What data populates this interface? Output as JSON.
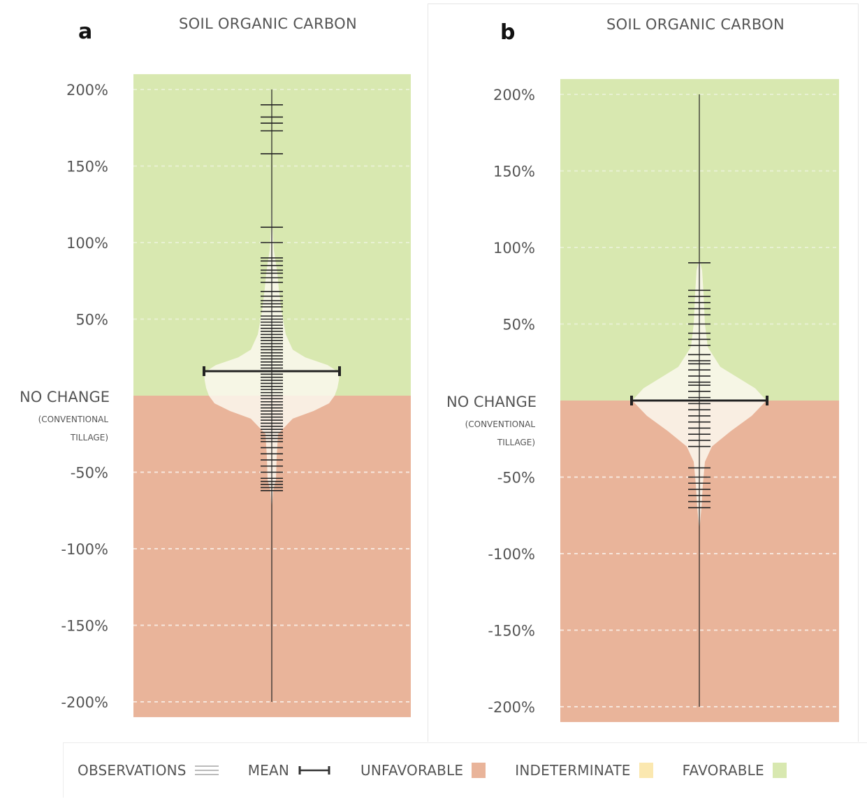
{
  "panels": [
    {
      "letter": "a",
      "title": "SOIL ORGANIC CARBON",
      "chart_data": {
        "type": "violin",
        "title": "SOIL ORGANIC CARBON",
        "ylim": [
          -200,
          200
        ],
        "yticks": [
          "200%",
          "150%",
          "100%",
          "50%",
          "NO CHANGE",
          "-50%",
          "-100%",
          "-150%",
          "-200%"
        ],
        "ytick_values": [
          200,
          150,
          100,
          50,
          0,
          -50,
          -100,
          -150,
          -200
        ],
        "zero_label": [
          "NO CHANGE",
          "(CONVENTIONAL",
          "TILLAGE)"
        ],
        "favorable_range": [
          0,
          210
        ],
        "unfavorable_range": [
          -210,
          0
        ],
        "whisker_range": [
          -200,
          200
        ],
        "mean": 16,
        "observations": [
          190,
          182,
          178,
          173,
          158,
          110,
          100,
          90,
          88,
          85,
          82,
          80,
          77,
          74,
          68,
          65,
          62,
          60,
          58,
          55,
          52,
          50,
          48,
          46,
          44,
          42,
          40,
          38,
          36,
          34,
          32,
          30,
          28,
          26,
          24,
          22,
          20,
          18,
          16,
          14,
          12,
          10,
          8,
          6,
          4,
          2,
          0,
          -2,
          -4,
          -6,
          -8,
          -10,
          -12,
          -14,
          -16,
          -18,
          -20,
          -22,
          -24,
          -26,
          -28,
          -30,
          -34,
          -38,
          -42,
          -46,
          -50,
          -54,
          -56,
          -58,
          -60,
          -62
        ],
        "density": [
          [
            -75,
            0
          ],
          [
            -62,
            2
          ],
          [
            -55,
            6
          ],
          [
            -40,
            7
          ],
          [
            -25,
            9
          ],
          [
            -15,
            30
          ],
          [
            -10,
            60
          ],
          [
            -5,
            82
          ],
          [
            0,
            90
          ],
          [
            5,
            94
          ],
          [
            10,
            96
          ],
          [
            15,
            97
          ],
          [
            20,
            80
          ],
          [
            25,
            48
          ],
          [
            30,
            30
          ],
          [
            40,
            20
          ],
          [
            55,
            14
          ],
          [
            70,
            10
          ],
          [
            80,
            8
          ],
          [
            95,
            3
          ],
          [
            110,
            1
          ],
          [
            150,
            0
          ]
        ]
      }
    },
    {
      "letter": "b",
      "title": "SOIL ORGANIC CARBON",
      "chart_data": {
        "type": "violin",
        "title": "SOIL ORGANIC CARBON",
        "ylim": [
          -200,
          200
        ],
        "yticks": [
          "200%",
          "150%",
          "100%",
          "50%",
          "NO CHANGE",
          "-50%",
          "-100%",
          "-150%",
          "-200%"
        ],
        "ytick_values": [
          200,
          150,
          100,
          50,
          0,
          -50,
          -100,
          -150,
          -200
        ],
        "zero_label": [
          "NO CHANGE",
          "(CONVENTIONAL",
          "TILLAGE)"
        ],
        "favorable_range": [
          0,
          210
        ],
        "unfavorable_range": [
          -210,
          0
        ],
        "whisker_range": [
          -200,
          200
        ],
        "mean": 0,
        "observations": [
          90,
          72,
          68,
          64,
          60,
          56,
          50,
          44,
          40,
          36,
          30,
          26,
          24,
          20,
          16,
          12,
          10,
          6,
          2,
          0,
          -2,
          -6,
          -10,
          -14,
          -18,
          -22,
          -26,
          -30,
          -44,
          -50,
          -54,
          -58,
          -62,
          -66,
          -70
        ],
        "density": [
          [
            -85,
            0
          ],
          [
            -70,
            3
          ],
          [
            -55,
            5
          ],
          [
            -40,
            8
          ],
          [
            -30,
            18
          ],
          [
            -20,
            45
          ],
          [
            -10,
            75
          ],
          [
            0,
            96
          ],
          [
            8,
            80
          ],
          [
            15,
            55
          ],
          [
            22,
            30
          ],
          [
            35,
            12
          ],
          [
            50,
            8
          ],
          [
            70,
            6
          ],
          [
            85,
            4
          ],
          [
            92,
            0
          ]
        ]
      }
    }
  ],
  "legend": [
    {
      "label": "OBSERVATIONS",
      "icon": "observations-lines-icon"
    },
    {
      "label": "MEAN",
      "icon": "mean-whisker-icon"
    },
    {
      "label": "UNFAVORABLE",
      "color": "#e9b49a"
    },
    {
      "label": "INDETERMINATE",
      "color": "#fbe8b0"
    },
    {
      "label": "FAVORABLE",
      "color": "#d8e8b0"
    }
  ],
  "colors": {
    "favorable": "#d8e8b0",
    "unfavorable": "#e9b49a",
    "indeterminate": "#fbe8b0",
    "violin_fill": "#fbf8ee",
    "ink": "#222222",
    "tick_text": "#555555"
  }
}
